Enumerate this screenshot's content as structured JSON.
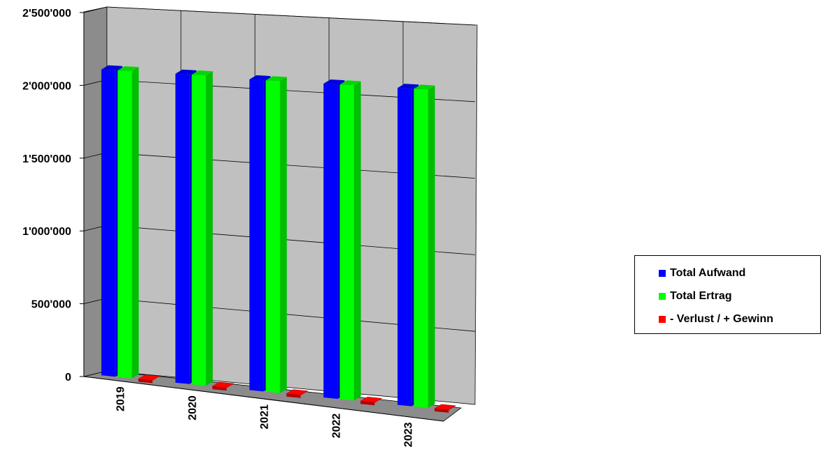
{
  "chart_data": {
    "type": "bar",
    "categories": [
      "2019",
      "2020",
      "2021",
      "2022",
      "2023"
    ],
    "series": [
      {
        "name": "Total Aufwand",
        "color": "#0000ff",
        "values": [
          2100000,
          2100000,
          2090000,
          2090000,
          2090000
        ]
      },
      {
        "name": "Total Ertrag",
        "color": "#00ff00",
        "values": [
          2100000,
          2100000,
          2090000,
          2090000,
          2090000
        ]
      },
      {
        "name": "- Verlust / + Gewinn",
        "color": "#ff0000",
        "values": [
          0,
          0,
          0,
          0,
          0
        ]
      }
    ],
    "y_ticks": [
      "0",
      "500'000",
      "1'000'000",
      "1'500'000",
      "2'000'000",
      "2'500'000"
    ],
    "ylim": [
      0,
      2500000
    ],
    "grid": true,
    "legend_position": "right",
    "style": "3d-perspective"
  }
}
